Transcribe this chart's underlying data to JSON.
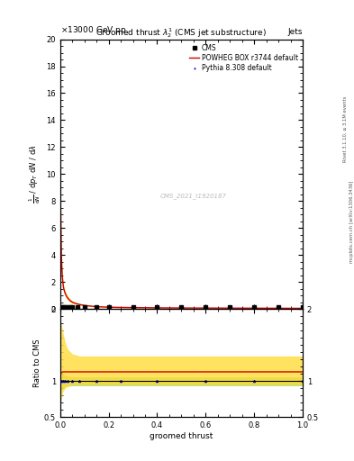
{
  "title_top_left": "13000 GeV pp",
  "title_top_right": "Jets",
  "plot_title": "Groomed thrust $\\lambda_2^1$ (CMS jet substructure)",
  "watermark": "CMS_2021_I1920187",
  "xlabel": "groomed thrust",
  "ylabel_main_lines": [
    "mathrm d^2N",
    "mathrm d p_T mathrm d lambda"
  ],
  "ylabel_ratio": "Ratio to CMS",
  "right_label_top": "Rivet 3.1.10, ≥ 3.1M events",
  "right_label_bottom": "mcplots.cern.ch [arXiv:1306.3436]",
  "ylim_main": [
    0,
    20
  ],
  "ylim_ratio": [
    0.5,
    2.0
  ],
  "xlim": [
    0,
    1
  ],
  "powheg_x": [
    0.001,
    0.003,
    0.005,
    0.007,
    0.009,
    0.011,
    0.013,
    0.015,
    0.02,
    0.025,
    0.03,
    0.04,
    0.05,
    0.065,
    0.08,
    0.1,
    0.13,
    0.16,
    0.2,
    0.25,
    0.3,
    0.35,
    0.4,
    0.5,
    0.6,
    0.7,
    0.8,
    0.9,
    1.0
  ],
  "powheg_y": [
    9.0,
    6.0,
    4.0,
    3.0,
    2.4,
    2.0,
    1.7,
    1.5,
    1.2,
    1.0,
    0.85,
    0.65,
    0.52,
    0.42,
    0.35,
    0.28,
    0.22,
    0.18,
    0.15,
    0.13,
    0.12,
    0.11,
    0.1,
    0.09,
    0.085,
    0.08,
    0.075,
    0.07,
    0.065
  ],
  "powheg_band_lo": [
    7.5,
    5.0,
    3.3,
    2.5,
    2.0,
    1.65,
    1.4,
    1.25,
    1.0,
    0.82,
    0.7,
    0.54,
    0.43,
    0.35,
    0.29,
    0.23,
    0.18,
    0.15,
    0.12,
    0.11,
    0.1,
    0.09,
    0.085,
    0.075,
    0.071,
    0.067,
    0.062,
    0.058,
    0.054
  ],
  "powheg_band_hi": [
    10.5,
    7.0,
    4.7,
    3.5,
    2.8,
    2.35,
    2.0,
    1.75,
    1.4,
    1.18,
    1.0,
    0.76,
    0.61,
    0.49,
    0.41,
    0.33,
    0.26,
    0.21,
    0.18,
    0.15,
    0.14,
    0.13,
    0.115,
    0.105,
    0.099,
    0.093,
    0.088,
    0.082,
    0.076
  ],
  "cms_x": [
    0.005,
    0.01,
    0.02,
    0.03,
    0.04,
    0.05,
    0.07,
    0.1,
    0.15,
    0.2,
    0.3,
    0.4,
    0.5,
    0.6,
    0.7,
    0.8,
    0.9,
    1.0
  ],
  "cms_y": [
    0.15,
    0.15,
    0.15,
    0.15,
    0.15,
    0.15,
    0.15,
    0.15,
    0.15,
    0.15,
    0.15,
    0.15,
    0.15,
    0.15,
    0.15,
    0.15,
    0.15,
    0.15
  ],
  "cms_yerr": [
    0.02,
    0.02,
    0.02,
    0.02,
    0.02,
    0.02,
    0.02,
    0.02,
    0.02,
    0.02,
    0.02,
    0.02,
    0.02,
    0.02,
    0.02,
    0.02,
    0.02,
    0.02
  ],
  "pythia_x": [
    0.005,
    0.01,
    0.02,
    0.03,
    0.04,
    0.05,
    0.07,
    0.1,
    0.15,
    0.2,
    0.3,
    0.4,
    0.5,
    0.6,
    0.7,
    0.8,
    0.9,
    1.0
  ],
  "pythia_y": [
    0.15,
    0.15,
    0.15,
    0.15,
    0.15,
    0.15,
    0.15,
    0.15,
    0.15,
    0.15,
    0.15,
    0.15,
    0.15,
    0.15,
    0.15,
    0.15,
    0.15,
    0.15
  ],
  "ratio_powheg_x": [
    0.0,
    0.005,
    0.01,
    0.02,
    0.03,
    0.05,
    0.08,
    0.15,
    0.25,
    0.4,
    0.6,
    0.8,
    1.0
  ],
  "ratio_powheg_y": [
    1.1,
    1.12,
    1.13,
    1.13,
    1.13,
    1.13,
    1.13,
    1.13,
    1.13,
    1.13,
    1.13,
    1.13,
    1.13
  ],
  "ratio_powheg_lo": [
    0.65,
    0.75,
    0.85,
    0.9,
    0.93,
    0.95,
    0.95,
    0.95,
    0.95,
    0.95,
    0.95,
    0.95,
    0.95
  ],
  "ratio_powheg_hi": [
    1.8,
    1.8,
    1.7,
    1.55,
    1.45,
    1.38,
    1.35,
    1.35,
    1.35,
    1.35,
    1.35,
    1.35,
    1.35
  ],
  "ratio_pythia_x": [
    0.0,
    0.005,
    0.01,
    0.02,
    0.03,
    0.05,
    0.08,
    0.15,
    0.25,
    0.4,
    0.6,
    0.8,
    1.0
  ],
  "ratio_pythia_y": [
    1.0,
    1.0,
    1.0,
    1.0,
    1.0,
    1.0,
    1.0,
    1.0,
    1.0,
    1.0,
    1.0,
    1.0,
    1.0
  ],
  "ratio_pythia_lo": [
    0.85,
    0.88,
    0.9,
    0.92,
    0.93,
    0.94,
    0.94,
    0.94,
    0.94,
    0.94,
    0.94,
    0.94,
    0.94
  ],
  "ratio_pythia_hi": [
    1.15,
    1.12,
    1.1,
    1.08,
    1.07,
    1.06,
    1.06,
    1.06,
    1.06,
    1.06,
    1.06,
    1.06,
    1.06
  ],
  "color_cms": "#000000",
  "color_powheg": "#cc0000",
  "color_pythia": "#0000cc",
  "color_powheg_band": "#ffdd44",
  "color_pythia_band": "#88cc44",
  "bg_color": "#ffffff",
  "tick_label_size": 6,
  "axis_label_size": 6,
  "title_size": 6.5,
  "legend_size": 5.5
}
